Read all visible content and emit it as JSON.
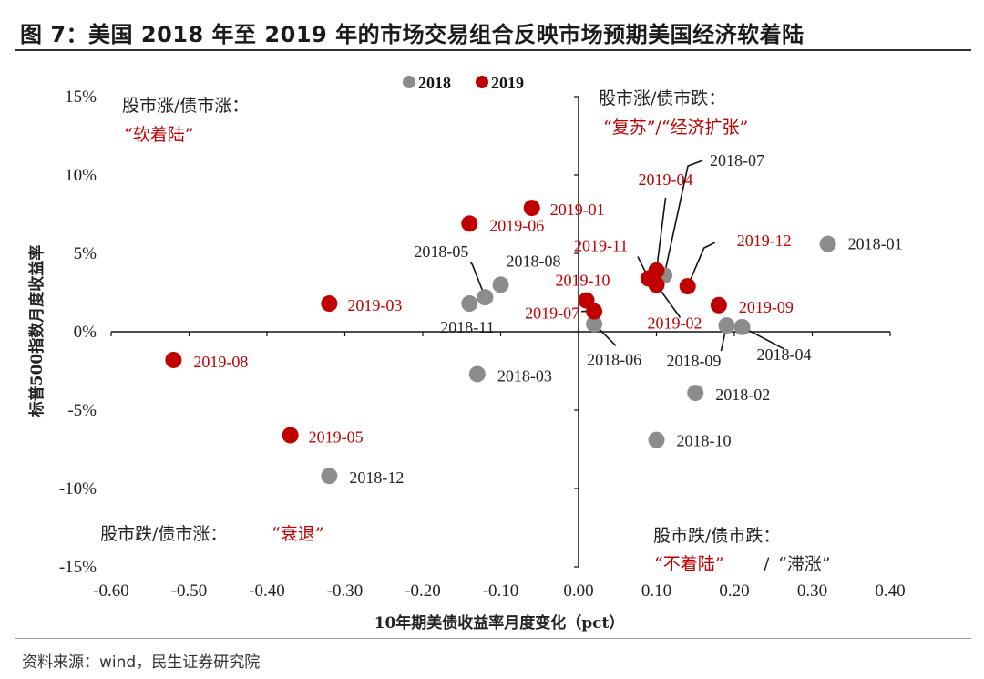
{
  "header": {
    "title": "图 7：美国 2018 年至 2019 年的市场交易组合反映市场预期美国经济软着陆"
  },
  "footer": {
    "source": "资料来源：wind，民生证券研究院"
  },
  "colors": {
    "series_2018": "#8c8c8c",
    "series_2019": "#c00000",
    "text": "#222222",
    "accent": "#c00000"
  },
  "quadrants": {
    "top_left": {
      "line1": "股市涨/债市涨：",
      "line2": "“软着陆”"
    },
    "top_right": {
      "line1": "股市涨/债市跌：",
      "line2": "“复苏”/“经济扩张”"
    },
    "bottom_left": {
      "line1": "股市跌/债市涨：",
      "line2": "“衰退”"
    },
    "bottom_right": {
      "line1": "股市跌/债市跌：",
      "line2a": "“不着陆”",
      "sep": "/",
      "line2b": "“滞涨”"
    }
  },
  "chart_data": {
    "type": "scatter",
    "xlabel": "10年期美债收益率月度变化（pct）",
    "ylabel": "标普500指数月度收益率",
    "xlim": [
      -0.6,
      0.4
    ],
    "ylim": [
      -15,
      15
    ],
    "x_ticks": [
      "-0.60",
      "-0.50",
      "-0.40",
      "-0.30",
      "-0.20",
      "-0.10",
      "0.00",
      "0.10",
      "0.20",
      "0.30",
      "0.40"
    ],
    "y_ticks": [
      "15%",
      "10%",
      "5%",
      "0%",
      "-5%",
      "-10%",
      "-15%"
    ],
    "legend_position": "top-center",
    "series": [
      {
        "name": "2018",
        "color": "#8c8c8c",
        "points": [
          {
            "label": "2018-01",
            "x": 0.32,
            "y": 5.6
          },
          {
            "label": "2018-02",
            "x": 0.15,
            "y": -3.9
          },
          {
            "label": "2018-03",
            "x": -0.13,
            "y": -2.7
          },
          {
            "label": "2018-04",
            "x": 0.21,
            "y": 0.3
          },
          {
            "label": "2018-05",
            "x": -0.12,
            "y": 2.2
          },
          {
            "label": "2018-06",
            "x": 0.02,
            "y": 0.5
          },
          {
            "label": "2018-07",
            "x": 0.11,
            "y": 3.6
          },
          {
            "label": "2018-08",
            "x": -0.1,
            "y": 3.0
          },
          {
            "label": "2018-09",
            "x": 0.19,
            "y": 0.4
          },
          {
            "label": "2018-10",
            "x": 0.1,
            "y": -6.9
          },
          {
            "label": "2018-11",
            "x": -0.14,
            "y": 1.8
          },
          {
            "label": "2018-12",
            "x": -0.32,
            "y": -9.2
          }
        ]
      },
      {
        "name": "2019",
        "color": "#c00000",
        "points": [
          {
            "label": "2019-01",
            "x": -0.06,
            "y": 7.9
          },
          {
            "label": "2019-02",
            "x": 0.1,
            "y": 3.0
          },
          {
            "label": "2019-03",
            "x": -0.32,
            "y": 1.8
          },
          {
            "label": "2019-04",
            "x": 0.1,
            "y": 3.9
          },
          {
            "label": "2019-05",
            "x": -0.37,
            "y": -6.6
          },
          {
            "label": "2019-06",
            "x": -0.14,
            "y": 6.9
          },
          {
            "label": "2019-07",
            "x": 0.02,
            "y": 1.3
          },
          {
            "label": "2019-08",
            "x": -0.52,
            "y": -1.8
          },
          {
            "label": "2019-09",
            "x": 0.18,
            "y": 1.7
          },
          {
            "label": "2019-10",
            "x": 0.01,
            "y": 2.0
          },
          {
            "label": "2019-11",
            "x": 0.09,
            "y": 3.4
          },
          {
            "label": "2019-12",
            "x": 0.14,
            "y": 2.9
          }
        ]
      }
    ]
  }
}
